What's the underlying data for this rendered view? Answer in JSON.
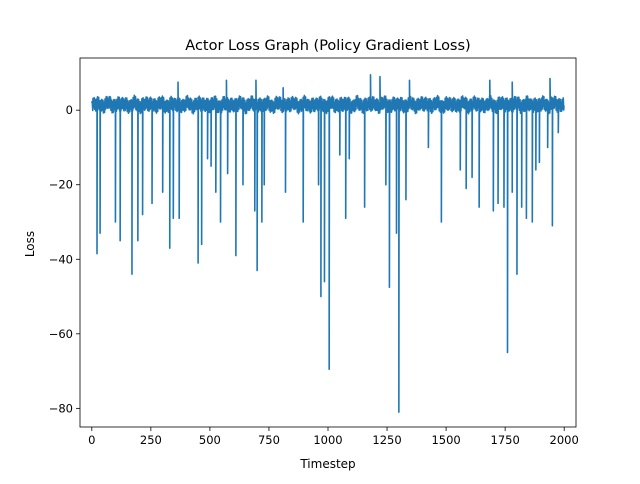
{
  "chart_data": {
    "type": "line",
    "title": "Actor Loss Graph (Policy Gradient Loss)",
    "xlabel": "Timestep",
    "ylabel": "Loss",
    "xlim": [
      -50,
      2050
    ],
    "ylim": [
      -85,
      14
    ],
    "xticks": [
      0,
      250,
      500,
      750,
      1000,
      1250,
      1500,
      1750,
      2000
    ],
    "yticks": [
      -80,
      -60,
      -40,
      -20,
      0
    ],
    "ytick_labels": [
      "−80",
      "−60",
      "−40",
      "−20",
      "0"
    ],
    "grid": false,
    "legend": "none",
    "series": [
      {
        "color": "#1f77b4",
        "baseline_range": [
          -1,
          4
        ],
        "x_range": [
          0,
          2000
        ],
        "spikes_down": [
          [
            22,
            -38.5
          ],
          [
            35,
            -33
          ],
          [
            100,
            -30
          ],
          [
            120,
            -35
          ],
          [
            170,
            -44
          ],
          [
            195,
            -35
          ],
          [
            215,
            -28
          ],
          [
            255,
            -25
          ],
          [
            300,
            -22
          ],
          [
            330,
            -37
          ],
          [
            345,
            -29
          ],
          [
            370,
            -29
          ],
          [
            450,
            -41
          ],
          [
            465,
            -36
          ],
          [
            490,
            -13
          ],
          [
            505,
            -15
          ],
          [
            525,
            -22
          ],
          [
            545,
            -30
          ],
          [
            575,
            -17
          ],
          [
            610,
            -39
          ],
          [
            640,
            -20
          ],
          [
            690,
            -27
          ],
          [
            700,
            -43
          ],
          [
            720,
            -30
          ],
          [
            730,
            -20
          ],
          [
            820,
            -22
          ],
          [
            895,
            -30
          ],
          [
            960,
            -20
          ],
          [
            970,
            -50
          ],
          [
            985,
            -46
          ],
          [
            1005,
            -69.5
          ],
          [
            1050,
            -12
          ],
          [
            1075,
            -29
          ],
          [
            1090,
            -13
          ],
          [
            1155,
            -26
          ],
          [
            1245,
            -20
          ],
          [
            1260,
            -47.5
          ],
          [
            1290,
            -33
          ],
          [
            1300,
            -81
          ],
          [
            1330,
            -24
          ],
          [
            1425,
            -10
          ],
          [
            1480,
            -30
          ],
          [
            1560,
            -16
          ],
          [
            1585,
            -21
          ],
          [
            1610,
            -18
          ],
          [
            1640,
            -26
          ],
          [
            1700,
            -27
          ],
          [
            1720,
            -25
          ],
          [
            1745,
            -26
          ],
          [
            1760,
            -65
          ],
          [
            1780,
            -22
          ],
          [
            1800,
            -44
          ],
          [
            1820,
            -26
          ],
          [
            1840,
            -29
          ],
          [
            1865,
            -30
          ],
          [
            1880,
            -16
          ],
          [
            1895,
            -14
          ],
          [
            1930,
            -10
          ],
          [
            1950,
            -31
          ],
          [
            1975,
            -6
          ]
        ],
        "spikes_up": [
          [
            365,
            7.5
          ],
          [
            570,
            8
          ],
          [
            695,
            8
          ],
          [
            810,
            6
          ],
          [
            1180,
            9.5
          ],
          [
            1220,
            9
          ],
          [
            1345,
            8
          ],
          [
            1685,
            8
          ],
          [
            1780,
            7.5
          ],
          [
            1940,
            8.5
          ]
        ]
      }
    ]
  }
}
